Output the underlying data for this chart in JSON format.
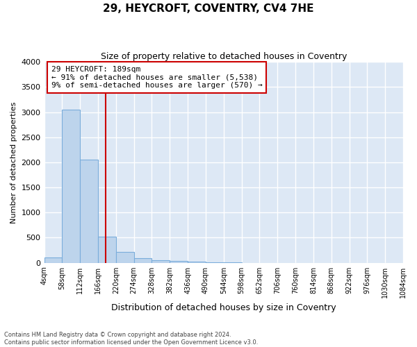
{
  "title": "29, HEYCROFT, COVENTRY, CV4 7HE",
  "subtitle": "Size of property relative to detached houses in Coventry",
  "xlabel": "Distribution of detached houses by size in Coventry",
  "ylabel": "Number of detached properties",
  "footnote1": "Contains HM Land Registry data © Crown copyright and database right 2024.",
  "footnote2": "Contains public sector information licensed under the Open Government Licence v3.0.",
  "annotation_line1": "29 HEYCROFT: 189sqm",
  "annotation_line2": "← 91% of detached houses are smaller (5,538)",
  "annotation_line3": "9% of semi-detached houses are larger (570) →",
  "bin_edges": [
    4,
    58,
    112,
    166,
    220,
    274,
    328,
    382,
    436,
    490,
    544,
    598,
    652,
    706,
    760,
    814,
    868,
    922,
    976,
    1030,
    1084
  ],
  "bin_labels": [
    "4sqm",
    "58sqm",
    "112sqm",
    "166sqm",
    "220sqm",
    "274sqm",
    "328sqm",
    "382sqm",
    "436sqm",
    "490sqm",
    "544sqm",
    "598sqm",
    "652sqm",
    "706sqm",
    "760sqm",
    "814sqm",
    "868sqm",
    "922sqm",
    "976sqm",
    "1030sqm",
    "1084sqm"
  ],
  "bar_values": [
    100,
    3050,
    2050,
    520,
    220,
    90,
    55,
    30,
    20,
    10,
    5,
    0,
    0,
    0,
    0,
    0,
    0,
    0,
    0,
    0
  ],
  "bar_color": "#bdd4ec",
  "bar_edge_color": "#7aaddb",
  "vline_color": "#cc0000",
  "vline_x": 189,
  "annotation_box_color": "#cc0000",
  "background_color": "#dde8f5",
  "grid_color": "#ffffff",
  "ylim": [
    0,
    4000
  ],
  "yticks": [
    0,
    500,
    1000,
    1500,
    2000,
    2500,
    3000,
    3500,
    4000
  ],
  "title_fontsize": 11,
  "subtitle_fontsize": 9
}
